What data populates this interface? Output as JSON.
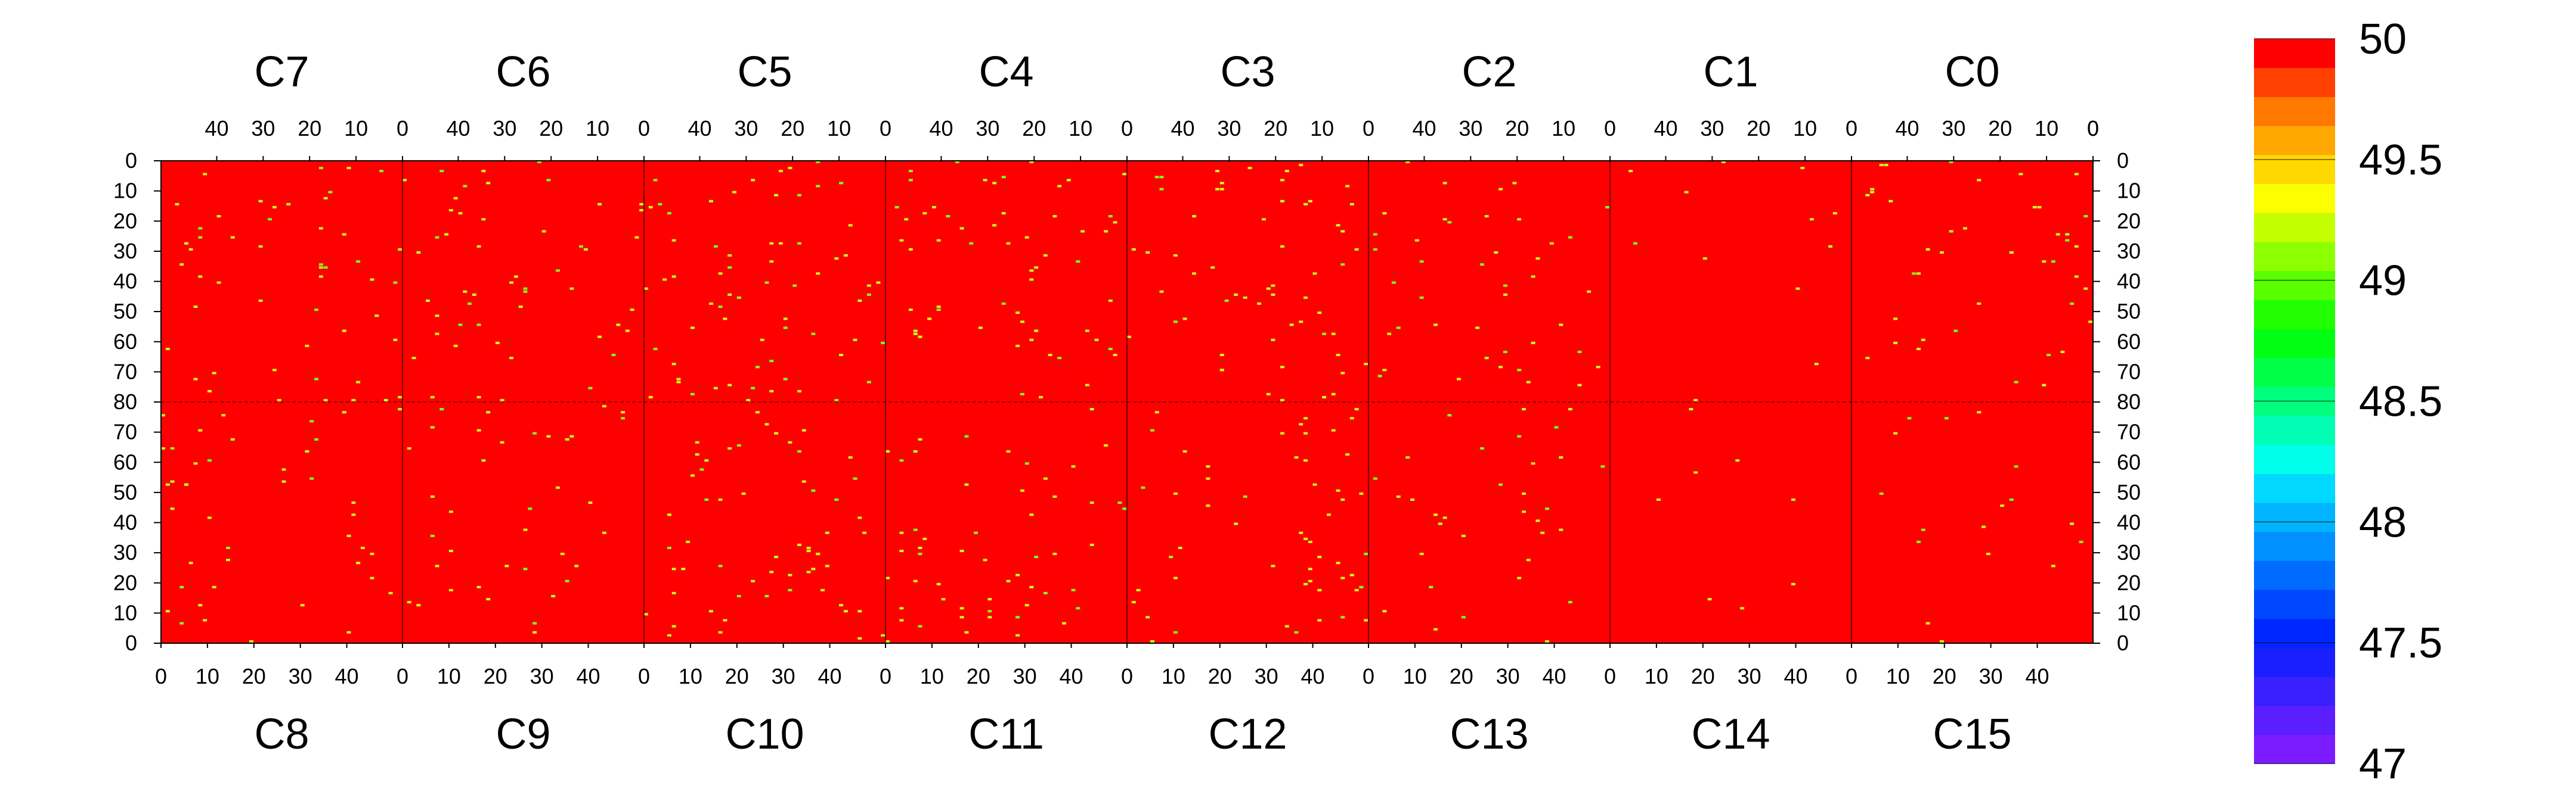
{
  "chart_data": {
    "type": "heatmap",
    "title": "",
    "xlabel": "",
    "ylabel": "",
    "top_chip_labels": [
      "C7",
      "C6",
      "C5",
      "C4",
      "C3",
      "C2",
      "C1",
      "C0"
    ],
    "bottom_chip_labels": [
      "C8",
      "C9",
      "C10",
      "C11",
      "C12",
      "C13",
      "C14",
      "C15"
    ],
    "columns_per_chip": 52,
    "rows_per_half": 80,
    "top_column_ticks": [
      40,
      30,
      20,
      10,
      0
    ],
    "bottom_column_ticks": [
      0,
      10,
      20,
      30,
      40
    ],
    "row_ticks_top_half": [
      0,
      10,
      20,
      30,
      40,
      50,
      60,
      70,
      80
    ],
    "row_ticks_bottom_half": [
      70,
      60,
      50,
      40,
      30,
      20,
      10,
      0
    ],
    "zlim": [
      47,
      50
    ],
    "colorbar_ticks": [
      "50",
      "49.5",
      "49",
      "48.5",
      "48",
      "47.5",
      "47"
    ],
    "colorbar_colors": [
      "#7a1cff",
      "#5a1eff",
      "#3a1fff",
      "#1a1fff",
      "#0026ff",
      "#0048ff",
      "#006cff",
      "#0090ff",
      "#00b4ff",
      "#00d8ff",
      "#00ffea",
      "#00ffb4",
      "#00ff7e",
      "#00ff48",
      "#00ff12",
      "#22ff00",
      "#58ff00",
      "#8eff00",
      "#c4ff00",
      "#fbff00",
      "#ffd800",
      "#ffa800",
      "#ff7800",
      "#ff4000",
      "#ff0000"
    ],
    "background_value": 50,
    "background_color": "#ff0000",
    "typical_low_value": 49.3,
    "typical_low_color": "#c6ff1e",
    "deep_low_value": 48.9,
    "deep_low_color": "#7cff22",
    "low_pixel_density_top": [
      0.012,
      0.012,
      0.016,
      0.014,
      0.014,
      0.01,
      0.003,
      0.01
    ],
    "low_pixel_density_bottom": [
      0.01,
      0.009,
      0.014,
      0.013,
      0.013,
      0.008,
      0.002,
      0.004
    ]
  }
}
